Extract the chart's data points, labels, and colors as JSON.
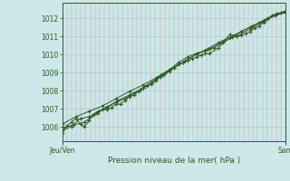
{
  "bg_color": "#cce8e8",
  "grid_color_major": "#aacccc",
  "grid_color_minor": "#bbdddd",
  "line_color": "#2d5a27",
  "marker_color": "#2d5a27",
  "title": "Pression niveau de la mer( hPa )",
  "xlabel_left": "Jeu/Ven",
  "xlabel_right": "Sam",
  "yticks": [
    1006,
    1007,
    1008,
    1009,
    1010,
    1011,
    1012
  ],
  "ylim": [
    1005.2,
    1012.85
  ],
  "xlim": [
    0.0,
    1.0
  ],
  "series": [
    [
      0.0,
      1005.65
    ],
    [
      0.02,
      1006.05
    ],
    [
      0.04,
      1006.25
    ],
    [
      0.06,
      1006.45
    ],
    [
      0.08,
      1006.15
    ],
    [
      0.1,
      1006.0
    ],
    [
      0.12,
      1006.35
    ],
    [
      0.14,
      1006.65
    ],
    [
      0.16,
      1006.75
    ],
    [
      0.18,
      1006.95
    ],
    [
      0.2,
      1006.95
    ],
    [
      0.22,
      1007.05
    ],
    [
      0.24,
      1007.25
    ],
    [
      0.26,
      1007.25
    ],
    [
      0.28,
      1007.45
    ],
    [
      0.3,
      1007.65
    ],
    [
      0.32,
      1007.75
    ],
    [
      0.34,
      1007.95
    ],
    [
      0.36,
      1008.15
    ],
    [
      0.38,
      1008.25
    ],
    [
      0.4,
      1008.35
    ],
    [
      0.42,
      1008.55
    ],
    [
      0.44,
      1008.75
    ],
    [
      0.46,
      1008.95
    ],
    [
      0.48,
      1009.05
    ],
    [
      0.5,
      1009.25
    ],
    [
      0.52,
      1009.45
    ],
    [
      0.54,
      1009.55
    ],
    [
      0.56,
      1009.65
    ],
    [
      0.58,
      1009.75
    ],
    [
      0.6,
      1009.85
    ],
    [
      0.62,
      1009.95
    ],
    [
      0.64,
      1010.05
    ],
    [
      0.66,
      1010.05
    ],
    [
      0.7,
      1010.35
    ],
    [
      0.75,
      1011.1
    ],
    [
      0.78,
      1011.0
    ],
    [
      0.8,
      1011.05
    ],
    [
      0.82,
      1011.15
    ],
    [
      0.84,
      1011.25
    ],
    [
      0.86,
      1011.45
    ],
    [
      0.88,
      1011.55
    ],
    [
      0.9,
      1011.75
    ],
    [
      0.92,
      1011.95
    ],
    [
      0.94,
      1012.15
    ],
    [
      0.96,
      1012.25
    ],
    [
      0.98,
      1012.3
    ],
    [
      1.0,
      1012.35
    ]
  ],
  "series2": [
    [
      0.0,
      1005.8
    ],
    [
      0.04,
      1006.0
    ],
    [
      0.08,
      1006.45
    ],
    [
      0.12,
      1006.55
    ],
    [
      0.16,
      1006.85
    ],
    [
      0.2,
      1007.05
    ],
    [
      0.24,
      1007.35
    ],
    [
      0.28,
      1007.55
    ],
    [
      0.32,
      1007.85
    ],
    [
      0.36,
      1008.15
    ],
    [
      0.4,
      1008.45
    ],
    [
      0.44,
      1008.85
    ],
    [
      0.48,
      1009.15
    ],
    [
      0.52,
      1009.55
    ],
    [
      0.56,
      1009.85
    ],
    [
      0.6,
      1010.05
    ],
    [
      0.64,
      1010.2
    ],
    [
      0.68,
      1010.35
    ],
    [
      0.72,
      1010.65
    ],
    [
      0.76,
      1010.95
    ],
    [
      0.8,
      1011.25
    ],
    [
      0.84,
      1011.5
    ],
    [
      0.88,
      1011.75
    ],
    [
      0.92,
      1012.0
    ],
    [
      0.96,
      1012.2
    ],
    [
      1.0,
      1012.3
    ]
  ],
  "series3": [
    [
      0.0,
      1005.95
    ],
    [
      0.05,
      1006.1
    ],
    [
      0.1,
      1006.25
    ],
    [
      0.15,
      1006.75
    ],
    [
      0.2,
      1007.1
    ],
    [
      0.25,
      1007.45
    ],
    [
      0.3,
      1007.75
    ],
    [
      0.35,
      1008.05
    ],
    [
      0.4,
      1008.45
    ],
    [
      0.45,
      1008.85
    ],
    [
      0.5,
      1009.25
    ],
    [
      0.55,
      1009.65
    ],
    [
      0.6,
      1010.0
    ],
    [
      0.65,
      1010.3
    ],
    [
      0.7,
      1010.65
    ],
    [
      0.75,
      1010.95
    ],
    [
      0.8,
      1011.25
    ],
    [
      0.85,
      1011.55
    ],
    [
      0.9,
      1011.85
    ],
    [
      0.95,
      1012.15
    ],
    [
      1.0,
      1012.35
    ]
  ],
  "series4": [
    [
      0.0,
      1006.15
    ],
    [
      0.06,
      1006.55
    ],
    [
      0.12,
      1006.85
    ],
    [
      0.18,
      1007.15
    ],
    [
      0.24,
      1007.55
    ],
    [
      0.3,
      1007.95
    ],
    [
      0.36,
      1008.3
    ],
    [
      0.42,
      1008.7
    ],
    [
      0.48,
      1009.15
    ],
    [
      0.54,
      1009.55
    ],
    [
      0.6,
      1010.0
    ],
    [
      0.66,
      1010.3
    ],
    [
      0.72,
      1010.7
    ],
    [
      0.78,
      1011.0
    ],
    [
      0.84,
      1011.4
    ],
    [
      0.9,
      1011.8
    ],
    [
      0.96,
      1012.2
    ],
    [
      1.0,
      1012.4
    ]
  ]
}
